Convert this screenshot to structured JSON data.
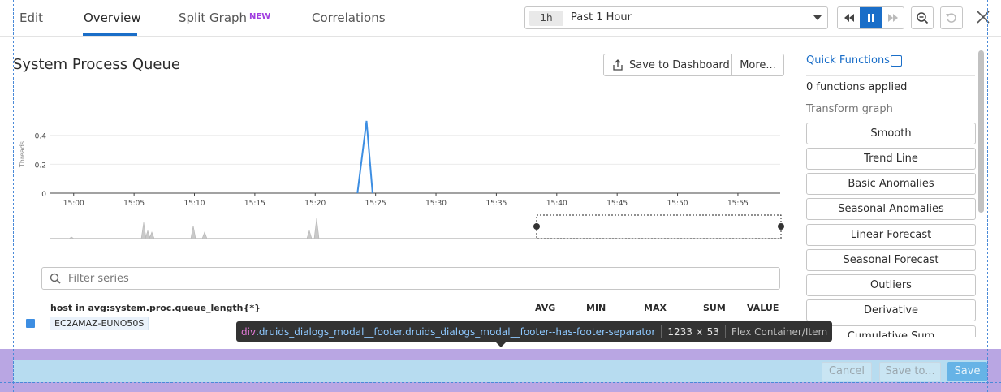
{
  "tabs": [
    {
      "label": "Edit"
    },
    {
      "label": "Overview"
    },
    {
      "label": "Split Graph"
    },
    {
      "label": "Correlations"
    }
  ],
  "new_badge": "NEW",
  "time": {
    "chip": "1h",
    "label": "Past 1 Hour"
  },
  "title": "System Process Queue",
  "actions": {
    "save_dashboard": "Save to Dashboard",
    "more": "More..."
  },
  "chart_data": {
    "type": "line",
    "ylabel": "Threads",
    "yticks": [
      "0",
      "0.2",
      "0.4"
    ],
    "ylim": [
      0,
      0.55
    ],
    "x_tick_labels": [
      "15:00",
      "15:05",
      "15:10",
      "15:15",
      "15:20",
      "15:25",
      "15:30",
      "15:35",
      "15:40",
      "15:45",
      "15:50",
      "15:55"
    ],
    "series": [
      {
        "color": "#3d8ee2",
        "points": [
          {
            "x": "15:23:30",
            "y": 0
          },
          {
            "x": "15:24:15",
            "y": 0.5
          },
          {
            "x": "15:24:45",
            "y": 0
          }
        ]
      }
    ],
    "grid": true
  },
  "filter": {
    "placeholder": "Filter series"
  },
  "table": {
    "group_header": "host in avg:system.proc.queue_length{*}",
    "columns": [
      "AVG",
      "MIN",
      "MAX",
      "SUM",
      "VALUE"
    ],
    "rows": [
      {
        "name": "EC2AMAZ-EUNO50S"
      }
    ]
  },
  "quick_functions": {
    "title": "Quick Functions",
    "applied": "0 functions applied",
    "transform_label": "Transform graph",
    "items": [
      "Smooth",
      "Trend Line",
      "Basic Anomalies",
      "Seasonal Anomalies",
      "Linear Forecast",
      "Seasonal Forecast",
      "Outliers",
      "Derivative",
      "Cumulative Sum"
    ]
  },
  "tooltip": {
    "tag": "div",
    "classes": ".druids_dialogs_modal__footer.druids_dialogs_modal__footer--has-footer-separator",
    "size": "1233 × 53",
    "type": "Flex Container/Item"
  },
  "footer": {
    "cancel": "Cancel",
    "save_to": "Save to...",
    "save": "Save"
  },
  "colors": {
    "accent": "#1a6ec8",
    "series": "#3d8ee2",
    "new_badge": "#a13ee0"
  },
  "icons": [
    "rewind-icon",
    "pause-icon",
    "forward-icon",
    "zoom-out-icon",
    "reset-icon",
    "close-icon",
    "share-icon",
    "search-icon",
    "expand-icon"
  ]
}
